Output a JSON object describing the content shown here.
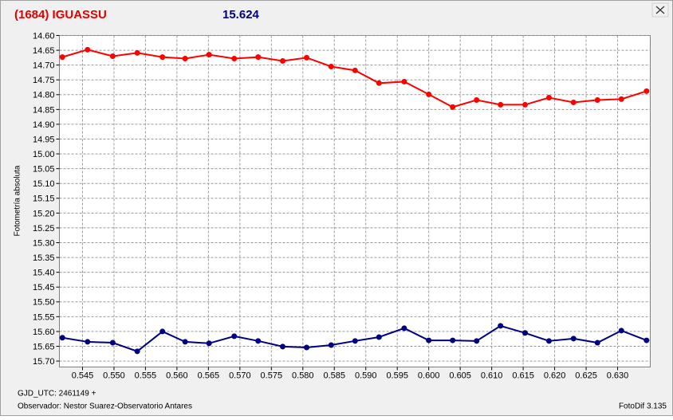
{
  "chart_data": {
    "type": "line",
    "title": "(1684) IGUASSU",
    "subtitle": "15.624",
    "y_label": "Fotometría absoluta",
    "footer_left_1": "GJD_UTC: 2461149 +",
    "footer_left_2": "Observador: Nestor Suarez-Observatorio Antares",
    "footer_right": "FotoDif 3.135",
    "y_inverted": true,
    "grid": true,
    "xlim": [
      0.54133,
      0.63519
    ],
    "ylim": [
      14.6,
      15.72
    ],
    "xticks": [
      0.545,
      {
        "value": 0.55,
        "label": "0.550"
      },
      0.555,
      {
        "value": 0.56,
        "label": "0.560"
      },
      0.565,
      {
        "value": 0.57,
        "label": "0.570"
      },
      0.575,
      {
        "value": 0.58,
        "label": "0.580"
      },
      0.585,
      {
        "value": 0.59,
        "label": "0.590"
      },
      0.595,
      {
        "value": 0.6,
        "label": "0.600"
      },
      0.605,
      {
        "value": 0.61,
        "label": "0.610"
      },
      0.615,
      {
        "value": 0.62,
        "label": "0.620"
      },
      0.625,
      {
        "value": 0.63,
        "label": "0.630"
      }
    ],
    "yticks": [
      {
        "value": 14.6,
        "label": "14.60"
      },
      14.65,
      {
        "value": 14.7,
        "label": "14.70"
      },
      14.75,
      {
        "value": 14.8,
        "label": "14.80"
      },
      14.85,
      {
        "value": 14.9,
        "label": "14.90"
      },
      14.95,
      {
        "value": 15.0,
        "label": "15.00"
      },
      15.05,
      {
        "value": 15.1,
        "label": "15.10"
      },
      15.15,
      {
        "value": 15.2,
        "label": "15.20"
      },
      15.25,
      {
        "value": 15.3,
        "label": "15.30"
      },
      15.35,
      {
        "value": 15.4,
        "label": "15.40"
      },
      15.45,
      {
        "value": 15.5,
        "label": "15.50"
      },
      15.55,
      {
        "value": 15.6,
        "label": "15.60"
      },
      15.65,
      {
        "value": 15.7,
        "label": "15.70"
      }
    ],
    "x": [
      0.5418,
      0.5458,
      0.5498,
      0.5537,
      0.5577,
      0.5613,
      0.5651,
      0.5691,
      0.5729,
      0.5768,
      0.5806,
      0.5845,
      0.5883,
      0.5921,
      0.5961,
      0.6,
      0.6038,
      0.6076,
      0.6114,
      0.6153,
      0.6191,
      0.623,
      0.6268,
      0.6306,
      0.6346
    ],
    "series": [
      {
        "color": "#ff0000",
        "values": [
          14.673,
          14.648,
          14.67,
          14.659,
          14.673,
          14.678,
          14.665,
          14.678,
          14.673,
          14.686,
          14.675,
          14.705,
          14.718,
          14.761,
          14.756,
          14.799,
          14.842,
          14.818,
          14.834,
          14.834,
          14.81,
          14.826,
          14.818,
          14.815,
          14.788
        ]
      },
      {
        "color": "#000080",
        "values": [
          15.621,
          15.635,
          15.638,
          15.667,
          15.6,
          15.635,
          15.64,
          15.616,
          15.632,
          15.651,
          15.654,
          15.646,
          15.632,
          15.619,
          15.589,
          15.63,
          15.63,
          15.632,
          15.581,
          15.605,
          15.632,
          15.624,
          15.638,
          15.597,
          15.63
        ]
      }
    ]
  }
}
